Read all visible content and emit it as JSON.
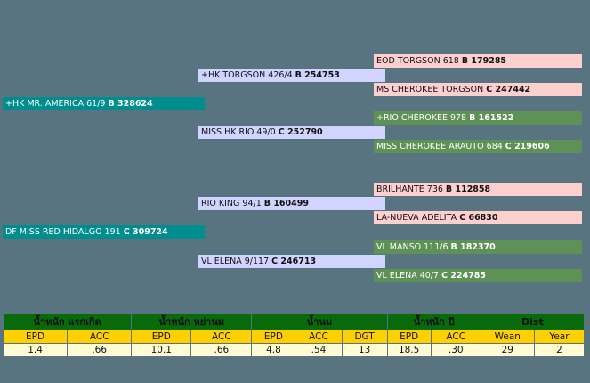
{
  "pedigree": {
    "sire": {
      "name": "+HK MR. AMERICA 61/9",
      "reg": "B 328624"
    },
    "sire_sire": {
      "name": "+HK TORGSON 426/4",
      "reg": "B 254753"
    },
    "sire_dam": {
      "name": "MISS HK RIO 49/0",
      "reg": "C 252790"
    },
    "sss": {
      "name": "EOD TORGSON 618",
      "reg": "B 179285"
    },
    "ssd": {
      "name": "MS CHEROKEE TORGSON",
      "reg": "C 247442"
    },
    "sds": {
      "name": "+RIO CHEROKEE 978",
      "reg": "B 161522"
    },
    "sdd": {
      "name": "MISS CHEROKEE ARAUTO 684",
      "reg": "C 219606"
    },
    "dam": {
      "name": "DF MISS RED HIDALGO 191",
      "reg": "C 309724"
    },
    "dam_sire": {
      "name": "RIO KING 94/1",
      "reg": "B 160499"
    },
    "dam_dam": {
      "name": "VL ELENA 9/117",
      "reg": "C 246713"
    },
    "dss": {
      "name": "BRILHANTE 736",
      "reg": "B 112858"
    },
    "dsd": {
      "name": "LA-NUEVA ADELITA",
      "reg": "C 66830"
    },
    "dds": {
      "name": "VL MANSO 111/6",
      "reg": "B 182370"
    },
    "ddd": {
      "name": "VL ELENA 40/7",
      "reg": "C 224785"
    }
  },
  "epd_table": {
    "groups": [
      "น้ำหนัก แรกเกิด",
      "น้ำหนัก หย่านม",
      "น้ำนม",
      "น้ำหนัก ปี",
      "Dist"
    ],
    "subheaders": [
      "EPD",
      "ACC",
      "EPD",
      "ACC",
      "EPD",
      "ACC",
      "DGT",
      "EPD",
      "ACC",
      "Wean",
      "Year"
    ],
    "values": [
      "1.4",
      ".66",
      "10.1",
      ".66",
      "4.8",
      ".54",
      "13",
      "18.5",
      ".30",
      "29",
      "2"
    ]
  }
}
